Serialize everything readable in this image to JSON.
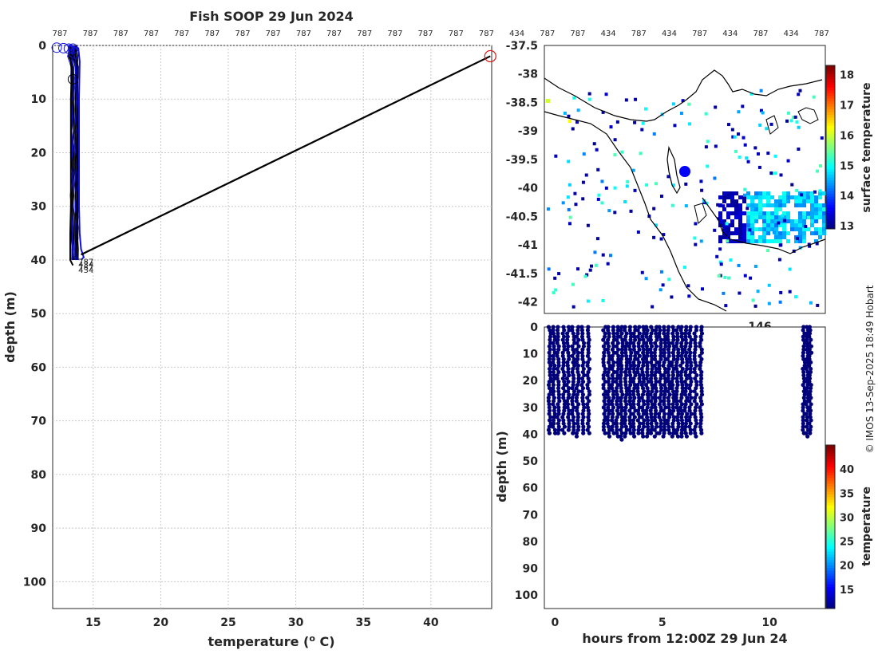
{
  "figure_title": "Fish SOOP 29 Jun 2024",
  "watermark": "© IMOS 13-Sep-2025 18:49 Hobart",
  "colors": {
    "profile_line": "#1010e0",
    "transect_line": "#000000",
    "start_marker": "#e01010",
    "dot": "#00007a",
    "grid": "#c8c8c8"
  },
  "chart_data": [
    {
      "type": "line",
      "name": "temperature-profile",
      "title": "Fish SOOP 29 Jun 2024",
      "xlabel": "temperature (",
      "xlabel_sup": "o",
      "xlabel_tail": " C)",
      "ylabel": "depth (m)",
      "xlim": [
        12,
        44.5
      ],
      "ylim": [
        0,
        105
      ],
      "y_inverted": true,
      "xticks": [
        15,
        20,
        25,
        30,
        35,
        40
      ],
      "yticks": [
        0,
        10,
        20,
        30,
        40,
        50,
        60,
        70,
        80,
        90,
        100
      ],
      "top_ids": [
        "787",
        "787",
        "787",
        "787",
        "787",
        "787",
        "787",
        "787",
        "787",
        "787",
        "787",
        "787",
        "787",
        "787",
        "787",
        "434",
        "787",
        "787",
        "434",
        "787",
        "434",
        "787",
        "434",
        "787",
        "434",
        "787"
      ],
      "series": [
        {
          "name": "profile-envelope-right",
          "color": "#1010e0",
          "points": [
            [
              13.2,
              0
            ],
            [
              13.9,
              0.5
            ],
            [
              14.0,
              3
            ],
            [
              13.95,
              10
            ],
            [
              13.95,
              20
            ],
            [
              13.95,
              30
            ],
            [
              14.0,
              35
            ],
            [
              14.1,
              38
            ],
            [
              14.3,
              39.5
            ],
            [
              14.1,
              40
            ]
          ]
        },
        {
          "name": "profile-envelope-left",
          "color": "#000000",
          "points": [
            [
              13.3,
              1
            ],
            [
              13.4,
              5
            ],
            [
              13.35,
              10
            ],
            [
              13.35,
              20
            ],
            [
              13.35,
              30
            ],
            [
              13.3,
              35
            ],
            [
              13.3,
              40
            ],
            [
              13.5,
              41
            ]
          ]
        },
        {
          "name": "transect-link",
          "color": "#000000",
          "points": [
            [
              14.1,
              39
            ],
            [
              44.4,
              2
            ]
          ]
        }
      ],
      "surface_markers": [
        [
          12.3,
          0.4
        ],
        [
          12.8,
          0.5
        ],
        [
          13.2,
          0.6
        ],
        [
          13.5,
          0.6
        ],
        [
          13.6,
          1.5
        ],
        [
          13.5,
          6.3
        ]
      ],
      "start_marker": [
        44.4,
        2
      ],
      "bottom_labels": [
        "787",
        "434",
        "787",
        "434"
      ]
    },
    {
      "type": "heatmap",
      "name": "surface-temperature-map",
      "yticks": [
        -37.5,
        -38,
        -38.5,
        -39,
        -39.5,
        -40,
        -40.5,
        -41,
        -41.5,
        -42
      ],
      "ylim": [
        -42.2,
        -37.5
      ],
      "xtick_partial": "146",
      "colorbar_label": "surface temperature",
      "colorbar_ticks": [
        13,
        14,
        15,
        16,
        17,
        18
      ],
      "colorbar_range": [
        12.9,
        18.3
      ]
    },
    {
      "type": "scatter",
      "name": "depth-time-section",
      "xlabel": "hours from 12:00Z 29 Jun 24",
      "ylabel": "depth (m)",
      "xlim": [
        -0.5,
        12.6
      ],
      "ylim": [
        0,
        105
      ],
      "y_inverted": true,
      "xticks": [
        0,
        5,
        10
      ],
      "yticks": [
        0,
        10,
        20,
        30,
        40,
        50,
        60,
        70,
        80,
        90,
        100
      ],
      "colorbar_label": "temperature",
      "colorbar_ticks": [
        15,
        20,
        25,
        30,
        35,
        40
      ],
      "colorbar_range": [
        11,
        45
      ],
      "hour_columns": [
        -0.25,
        -0.05,
        0.15,
        0.4,
        0.6,
        0.85,
        1.05,
        1.3,
        1.55,
        2.3,
        2.5,
        2.7,
        2.9,
        3.1,
        3.3,
        3.5,
        3.7,
        3.9,
        4.1,
        4.3,
        4.5,
        4.7,
        4.9,
        5.1,
        5.3,
        5.5,
        5.7,
        5.9,
        6.1,
        6.3,
        6.55,
        6.8,
        11.6,
        11.75,
        11.9
      ],
      "max_depths": [
        40,
        40,
        40,
        40,
        39,
        40,
        41,
        40,
        40,
        40,
        41,
        40,
        41,
        43,
        41,
        40,
        41,
        40,
        41,
        42,
        40,
        41,
        40,
        41,
        40,
        41,
        42,
        42,
        41,
        40,
        41,
        40,
        40,
        42,
        40
      ]
    }
  ]
}
